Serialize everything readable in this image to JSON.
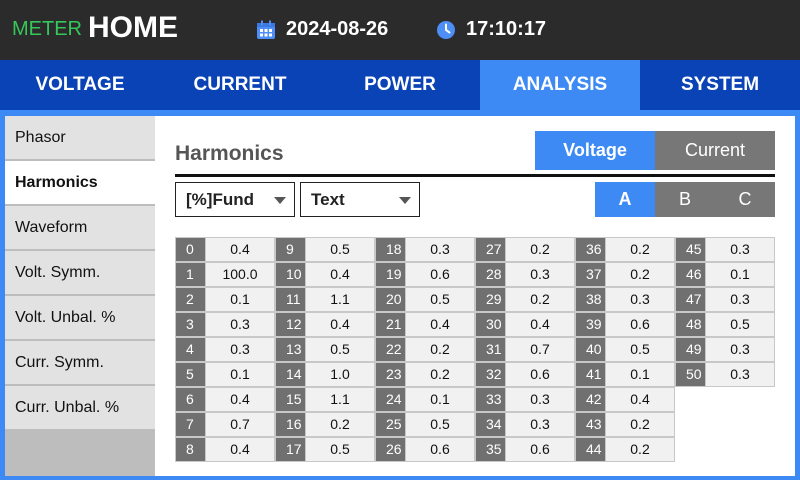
{
  "header": {
    "brand": "METER",
    "screen": "HOME",
    "date": "2024-08-26",
    "time": "17:10:17",
    "brand_color": "#34c759"
  },
  "tabs": [
    {
      "label": "VOLTAGE",
      "active": false
    },
    {
      "label": "CURRENT",
      "active": false
    },
    {
      "label": "POWER",
      "active": false
    },
    {
      "label": "ANALYSIS",
      "active": true
    },
    {
      "label": "SYSTEM",
      "active": false
    }
  ],
  "sidebar": {
    "items": [
      {
        "label": "Phasor",
        "active": false
      },
      {
        "label": "Harmonics",
        "active": true
      },
      {
        "label": "Waveform",
        "active": false
      },
      {
        "label": "Volt. Symm.",
        "active": false
      },
      {
        "label": "Volt. Unbal. %",
        "active": false
      },
      {
        "label": "Curr. Symm.",
        "active": false
      },
      {
        "label": "Curr. Unbal. %",
        "active": false
      }
    ]
  },
  "main": {
    "title": "Harmonics",
    "quantity_toggle": {
      "voltage": "Voltage",
      "current": "Current",
      "selected": "Voltage"
    },
    "unit_select": "[%]Fund",
    "view_select": "Text",
    "phase": {
      "a": "A",
      "b": "B",
      "c": "C",
      "selected": "A"
    },
    "harmonics": [
      [
        "0",
        "0.4"
      ],
      [
        "1",
        "100.0"
      ],
      [
        "2",
        "0.1"
      ],
      [
        "3",
        "0.3"
      ],
      [
        "4",
        "0.3"
      ],
      [
        "5",
        "0.1"
      ],
      [
        "6",
        "0.4"
      ],
      [
        "7",
        "0.7"
      ],
      [
        "8",
        "0.4"
      ],
      [
        "9",
        "0.5"
      ],
      [
        "10",
        "0.4"
      ],
      [
        "11",
        "1.1"
      ],
      [
        "12",
        "0.4"
      ],
      [
        "13",
        "0.5"
      ],
      [
        "14",
        "1.0"
      ],
      [
        "15",
        "1.1"
      ],
      [
        "16",
        "0.2"
      ],
      [
        "17",
        "0.5"
      ],
      [
        "18",
        "0.3"
      ],
      [
        "19",
        "0.6"
      ],
      [
        "20",
        "0.5"
      ],
      [
        "21",
        "0.4"
      ],
      [
        "22",
        "0.2"
      ],
      [
        "23",
        "0.2"
      ],
      [
        "24",
        "0.1"
      ],
      [
        "25",
        "0.5"
      ],
      [
        "26",
        "0.6"
      ],
      [
        "27",
        "0.2"
      ],
      [
        "28",
        "0.3"
      ],
      [
        "29",
        "0.2"
      ],
      [
        "30",
        "0.4"
      ],
      [
        "31",
        "0.7"
      ],
      [
        "32",
        "0.6"
      ],
      [
        "33",
        "0.3"
      ],
      [
        "34",
        "0.3"
      ],
      [
        "35",
        "0.6"
      ],
      [
        "36",
        "0.2"
      ],
      [
        "37",
        "0.2"
      ],
      [
        "38",
        "0.3"
      ],
      [
        "39",
        "0.6"
      ],
      [
        "40",
        "0.5"
      ],
      [
        "41",
        "0.1"
      ],
      [
        "42",
        "0.4"
      ],
      [
        "43",
        "0.2"
      ],
      [
        "44",
        "0.2"
      ],
      [
        "45",
        "0.3"
      ],
      [
        "46",
        "0.1"
      ],
      [
        "47",
        "0.3"
      ],
      [
        "48",
        "0.5"
      ],
      [
        "49",
        "0.3"
      ],
      [
        "50",
        "0.3"
      ]
    ]
  }
}
